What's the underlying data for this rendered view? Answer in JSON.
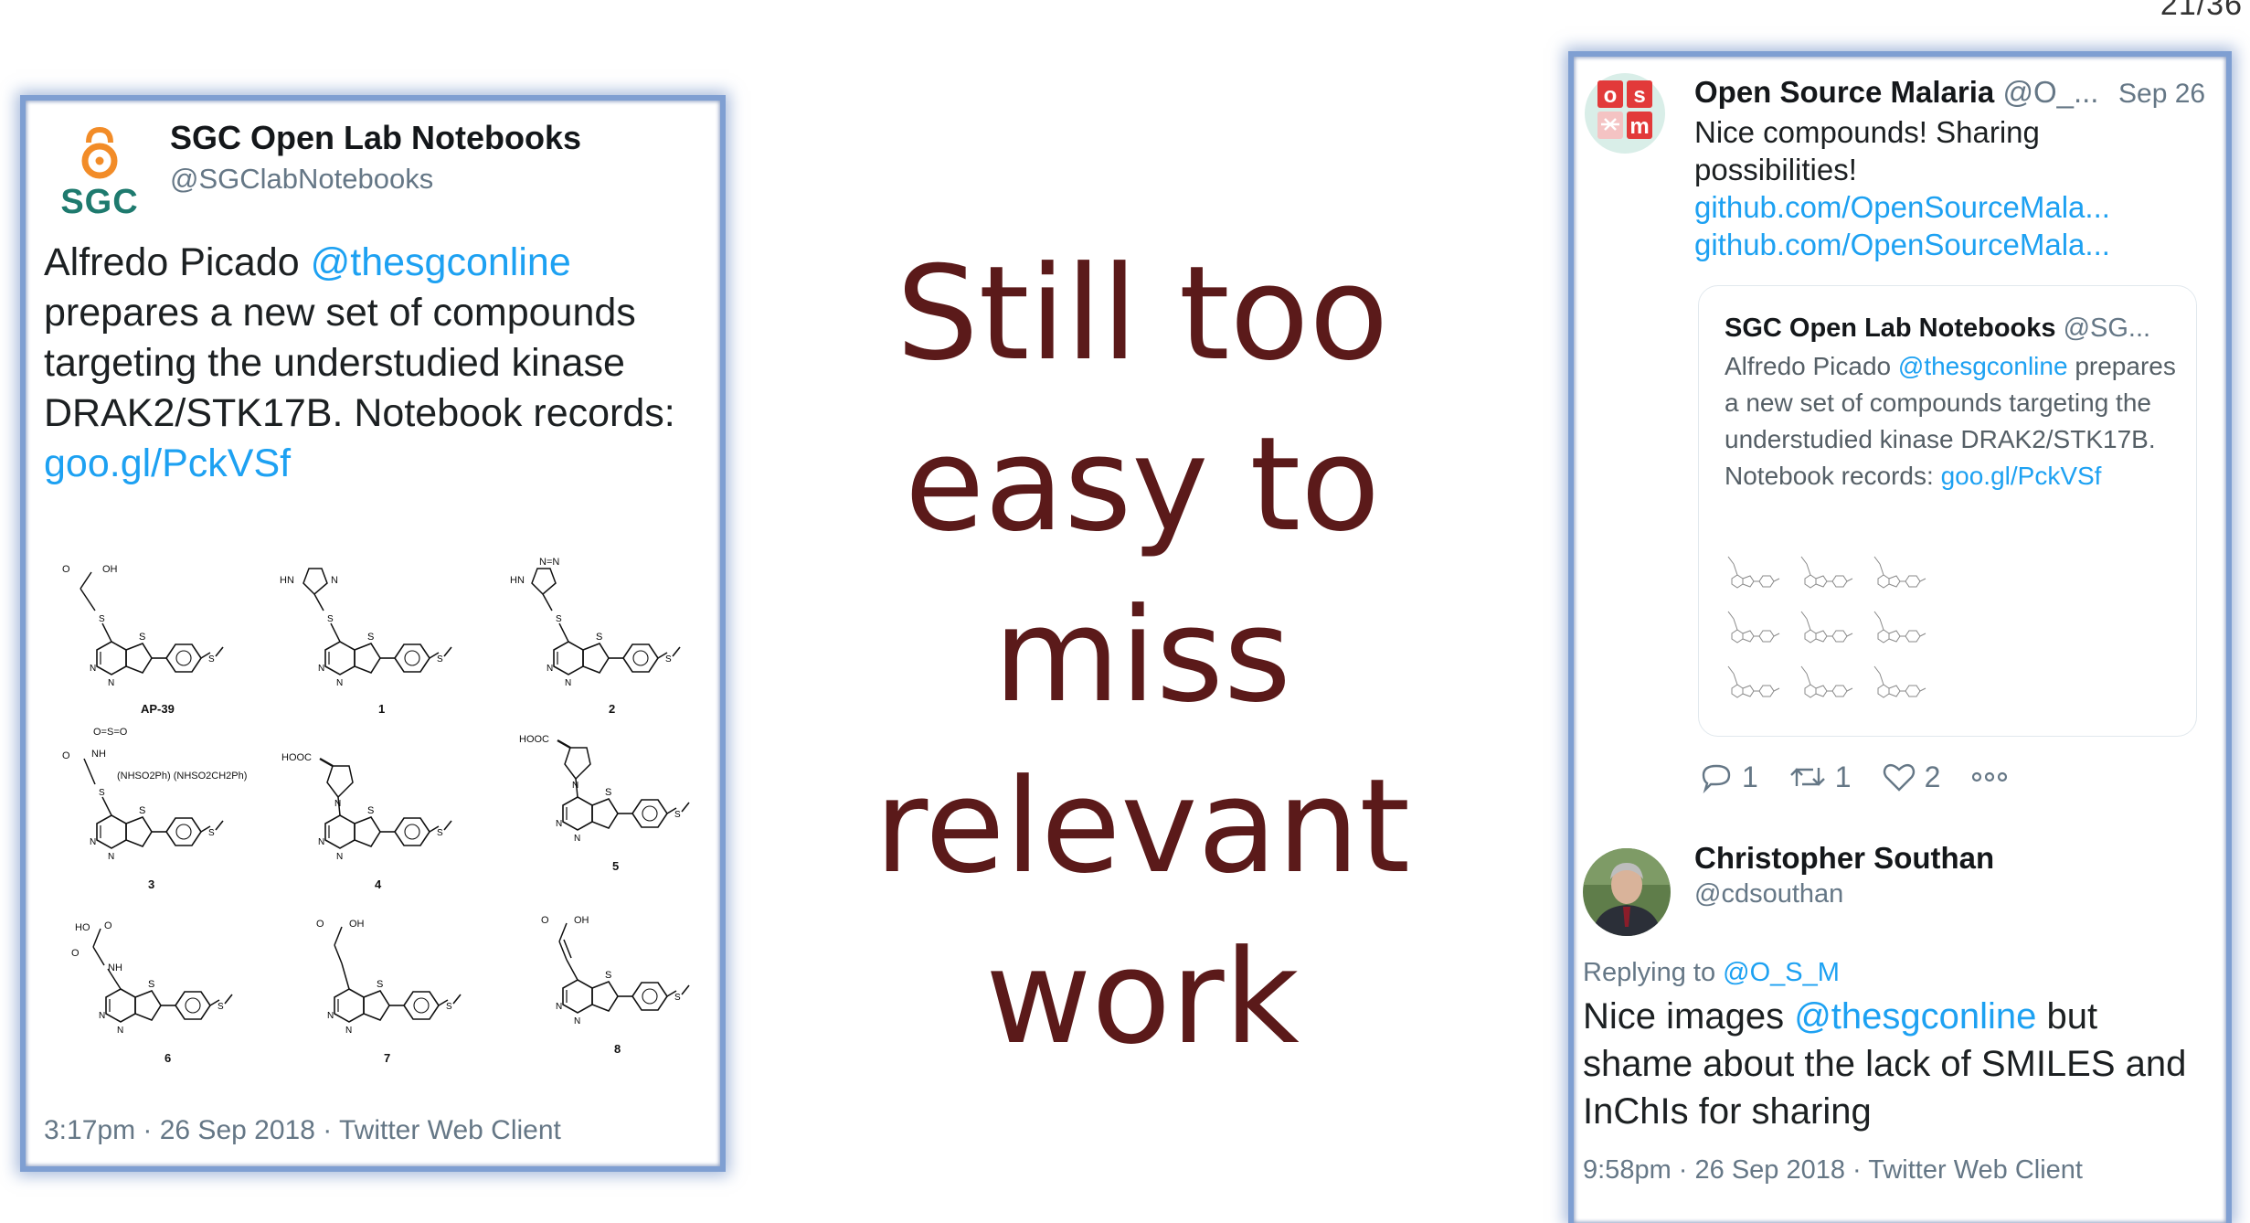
{
  "slide_number": "21/36",
  "headline": [
    "Still too",
    "easy to",
    "miss",
    "relevant",
    "work"
  ],
  "left_tweet": {
    "avatar_text": "SGC",
    "name": "SGC Open Lab Notebooks",
    "handle": "@SGClabNotebooks",
    "body_part1": "Alfredo Picado ",
    "mention": "@thesgconline",
    "body_part2": " prepares a new set of compounds targeting the understudied kinase DRAK2/STK17B. Notebook records: ",
    "link": "goo.gl/PckVSf",
    "footer": "3:17pm · 26 Sep 2018 · Twitter Web Client",
    "compounds": [
      {
        "label": "AP-39",
        "group": "OH"
      },
      {
        "label": "1",
        "group": "HN N"
      },
      {
        "label": "2",
        "group": "HN N=N"
      },
      {
        "label": "3",
        "group": "(NHSO2Ph) (NHSO2CH2Ph)"
      },
      {
        "label": "4",
        "group": "HOOC"
      },
      {
        "label": "5",
        "group": "HOOC"
      },
      {
        "label": "6",
        "group": "HO"
      },
      {
        "label": "7",
        "group": "OH"
      },
      {
        "label": "8",
        "group": "OH"
      }
    ]
  },
  "right_thread": {
    "tweet": {
      "avatar_letters": [
        "o",
        "s",
        "m"
      ],
      "name": "Open Source Malaria",
      "handle": "@O_...",
      "date": "Sep 26",
      "body": "Nice compounds! Sharing possibilities!",
      "links": [
        "github.com/OpenSourceMala...",
        "github.com/OpenSourceMala..."
      ]
    },
    "quoted": {
      "name": "SGC Open Lab Notebooks",
      "handle": "@SG...",
      "body_part1": "Alfredo Picado ",
      "mention": "@thesgconline",
      "body_part2": " prepares a new set of compounds targeting the understudied kinase DRAK2/STK17B. Notebook records: ",
      "link": "goo.gl/PckVSf"
    },
    "actions": {
      "replies": "1",
      "retweets": "1",
      "likes": "2"
    },
    "reply": {
      "name": "Christopher Southan",
      "handle": "@cdsouthan",
      "replying_prefix": "Replying to ",
      "replying_to": "@O_S_M",
      "body_part1": "Nice images ",
      "mention": "@thesgconline",
      "body_part2": " but shame about the lack of SMILES and InChIs for sharing",
      "footer": "9:58pm · 26 Sep 2018 · Twitter Web Client"
    }
  }
}
